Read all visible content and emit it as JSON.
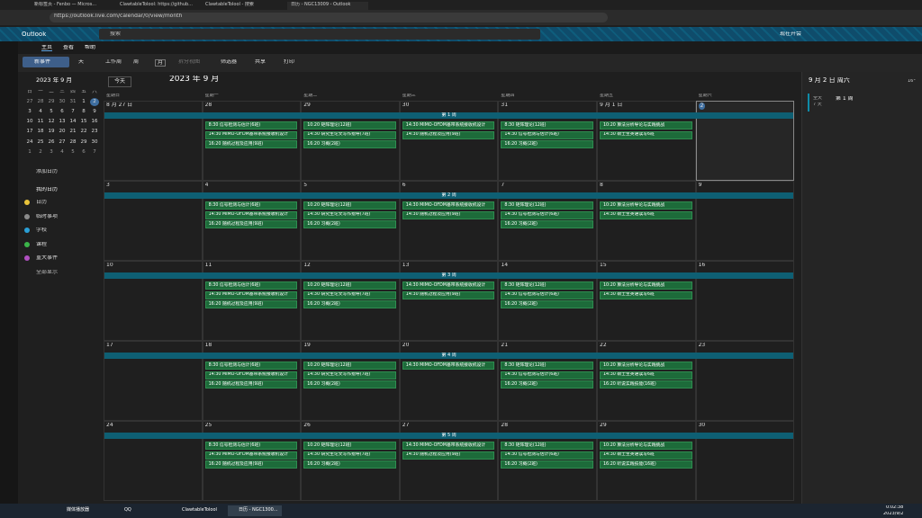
{
  "browser": {
    "tabs": [
      "新标签页 - Fenbo — Micros...",
      "ClawtableToIool: https://github...",
      "ClawtableToIool - 搜索",
      "日历 - NGC13009 - Outlook"
    ],
    "url": "https://outlook.live.com/calendar/0/view/month"
  },
  "header": {
    "app": "Outlook",
    "search": "搜索",
    "meet": "现在开会"
  },
  "ribbon": {
    "tabs": [
      "主页",
      "查看",
      "帮助"
    ],
    "new_event": "新事件",
    "views": [
      "天",
      "工作周",
      "周",
      "月"
    ],
    "split": "拆分视图",
    "filter": "筛选器",
    "share": "共享",
    "print": "打印"
  },
  "mini_calendar": {
    "title": "2023 年 9 月",
    "weekdays": [
      "日",
      "一",
      "二",
      "三",
      "四",
      "五",
      "六"
    ],
    "weeks": [
      [
        27,
        28,
        29,
        30,
        31,
        1,
        2
      ],
      [
        3,
        4,
        5,
        6,
        7,
        8,
        9
      ],
      [
        10,
        11,
        12,
        13,
        14,
        15,
        16
      ],
      [
        17,
        18,
        19,
        20,
        21,
        22,
        23
      ],
      [
        24,
        25,
        26,
        27,
        28,
        29,
        30
      ],
      [
        1,
        2,
        3,
        4,
        5,
        6,
        7
      ]
    ]
  },
  "add_calendar": "添加日历",
  "calendars": {
    "title": "我的日历",
    "items": [
      {
        "name": "日历",
        "color": "#e8c33a"
      },
      {
        "name": "临时事项",
        "color": "#8a8a8a"
      },
      {
        "name": "学校",
        "color": "#2a9fd6"
      },
      {
        "name": "课程",
        "color": "#3bb54a"
      },
      {
        "name": "重大事件",
        "color": "#b04fc0"
      }
    ],
    "show_all": "全部显示"
  },
  "calendar": {
    "today": "今天",
    "title": "2023 年 9 月",
    "weekdays": [
      "星期日",
      "星期一",
      "星期二",
      "星期三",
      "星期四",
      "星期五",
      "星期六"
    ],
    "weeks": [
      {
        "banner": "第 1 周",
        "dates": [
          "8 月 27 日",
          28,
          29,
          30,
          31,
          "9 月 1 日",
          2
        ],
        "events": [
          [],
          [
            "8:30 信号检测与估计(6班)",
            "14:30 MIMO-OFDM基带系统接收机设计",
            "16:20 随机过程及应用(9班)"
          ],
          [
            "10:20 矩阵理论(12班)",
            "14:30 研究生论文写作指导(7班)",
            "16:20 习概(2班)"
          ],
          [
            "14:30 MIMO-OFDM基带系统接收机设计",
            "14:30 随机过程及应用(9班)"
          ],
          [
            "8:30 矩阵理论(12班)",
            "14:30 信号检测与估计(6班)",
            "16:20 习概(2班)"
          ],
          [
            "10:20 算法分析导论与实践挑战",
            "14:30 硕士生英语读写6班"
          ],
          []
        ]
      },
      {
        "banner": "第 2 周",
        "dates": [
          3,
          4,
          5,
          6,
          7,
          8,
          9
        ],
        "events": [
          [],
          [
            "8:30 信号检测与估计(6班)",
            "14:30 MIMO-OFDM基带系统接收机设计",
            "16:20 随机过程及应用(9班)"
          ],
          [
            "10:20 矩阵理论(12班)",
            "14:30 研究生论文写作指导(7班)",
            "16:20 习概(2班)"
          ],
          [
            "14:30 MIMO-OFDM基带系统接收机设计",
            "14:30 随机过程及应用(9班)"
          ],
          [
            "8:30 矩阵理论(12班)",
            "14:30 信号检测与估计(6班)",
            "16:20 习概(2班)"
          ],
          [
            "10:20 算法分析导论与实践挑战",
            "14:30 硕士生英语读写6班"
          ],
          []
        ]
      },
      {
        "banner": "第 3 周",
        "dates": [
          10,
          11,
          12,
          13,
          14,
          15,
          16
        ],
        "events": [
          [],
          [
            "8:30 信号检测与估计(6班)",
            "14:30 MIMO-OFDM基带系统接收机设计",
            "16:20 随机过程及应用(9班)"
          ],
          [
            "10:20 矩阵理论(12班)",
            "14:30 研究生论文写作指导(7班)",
            "16:20 习概(2班)"
          ],
          [
            "14:30 MIMO-OFDM基带系统接收机设计",
            "14:30 随机过程及应用(9班)"
          ],
          [
            "8:30 矩阵理论(12班)",
            "14:30 信号检测与估计(6班)",
            "16:20 习概(2班)"
          ],
          [
            "10:20 算法分析导论与实践挑战",
            "14:30 硕士生英语读写6班"
          ],
          []
        ]
      },
      {
        "banner": "第 4 周",
        "dates": [
          17,
          18,
          19,
          20,
          21,
          22,
          23
        ],
        "events": [
          [],
          [
            "8:30 信号检测与估计(6班)",
            "14:30 MIMO-OFDM基带系统接收机设计",
            "16:20 随机过程及应用(9班)"
          ],
          [
            "10:20 矩阵理论(12班)",
            "14:30 研究生论文写作指导(7班)",
            "16:20 习概(2班)"
          ],
          [
            "14:30 MIMO-OFDM基带系统接收机设计"
          ],
          [
            "8:30 矩阵理论(12班)",
            "14:30 信号检测与估计(6班)",
            "16:20 习概(2班)"
          ],
          [
            "10:20 算法分析导论与实践挑战",
            "14:30 硕士生英语读写6班",
            "16:20 听说实践技能(16班)"
          ],
          []
        ]
      },
      {
        "banner": "第 5 周",
        "dates": [
          24,
          25,
          26,
          27,
          28,
          29,
          30
        ],
        "events": [
          [],
          [
            "8:30 信号检测与估计(6班)",
            "14:30 MIMO-OFDM基带系统接收机设计",
            "16:20 随机过程及应用(9班)"
          ],
          [
            "10:20 矩阵理论(12班)",
            "14:30 研究生论文写作指导(7班)",
            "16:20 习概(2班)"
          ],
          [
            "14:30 MIMO-OFDM基带系统接收机设计",
            "14:30 随机过程及应用(9班)"
          ],
          [
            "8:30 矩阵理论(12班)",
            "14:30 信号检测与估计(6班)",
            "16:20 习概(2班)"
          ],
          [
            "10:20 算法分析导论与实践挑战",
            "14:30 硕士生英语读写6班",
            "16:20 听说实践技能(16班)"
          ],
          []
        ]
      }
    ]
  },
  "details": {
    "date": "9 月 2 日 周六",
    "temp": "16°",
    "event": {
      "time": "全天",
      "duration": "7 天",
      "title": "第 1 周"
    }
  },
  "taskbar": {
    "apps": [
      "媒体播放器",
      "QQ",
      "ClawtableToIool",
      "日历 - NGC1300..."
    ],
    "time": "0:02:38",
    "date": "2023/9/2"
  }
}
